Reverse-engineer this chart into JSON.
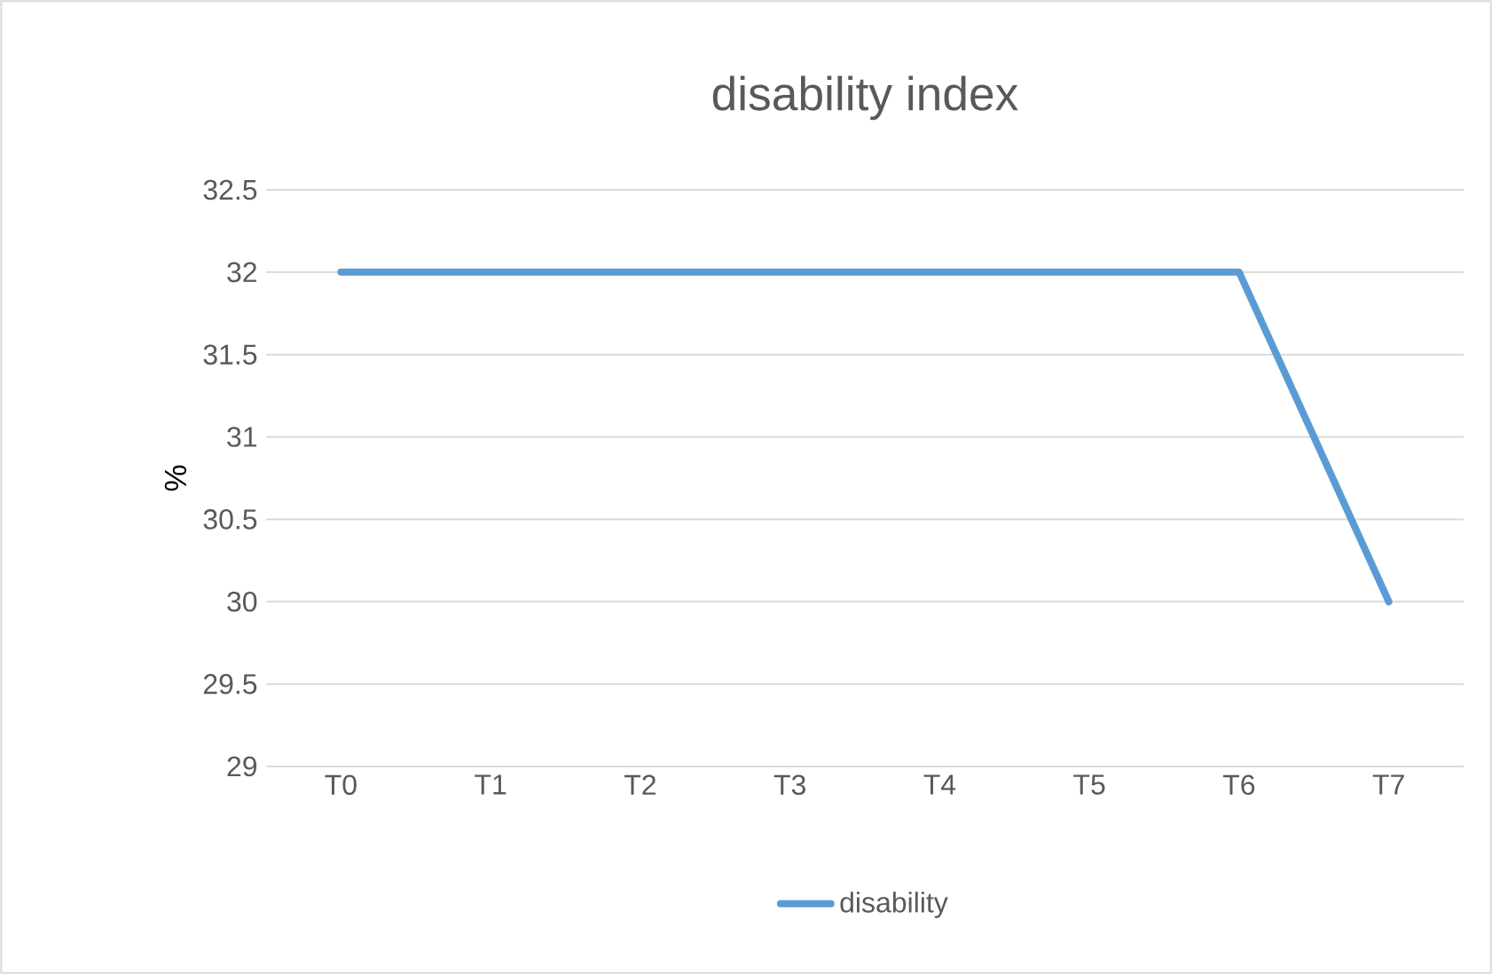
{
  "chart_data": {
    "type": "line",
    "title": "disability index",
    "ylabel": "%",
    "categories": [
      "T0",
      "T1",
      "T2",
      "T3",
      "T4",
      "T5",
      "T6",
      "T7"
    ],
    "series": [
      {
        "name": "disability",
        "color": "#5b9bd5",
        "values": [
          32,
          32,
          32,
          32,
          32,
          32,
          32,
          30
        ]
      }
    ],
    "ylim": [
      29,
      32.5
    ],
    "yticks": [
      29,
      29.5,
      30,
      30.5,
      31,
      31.5,
      32,
      32.5
    ],
    "grid": "y",
    "legend": "bottom"
  }
}
